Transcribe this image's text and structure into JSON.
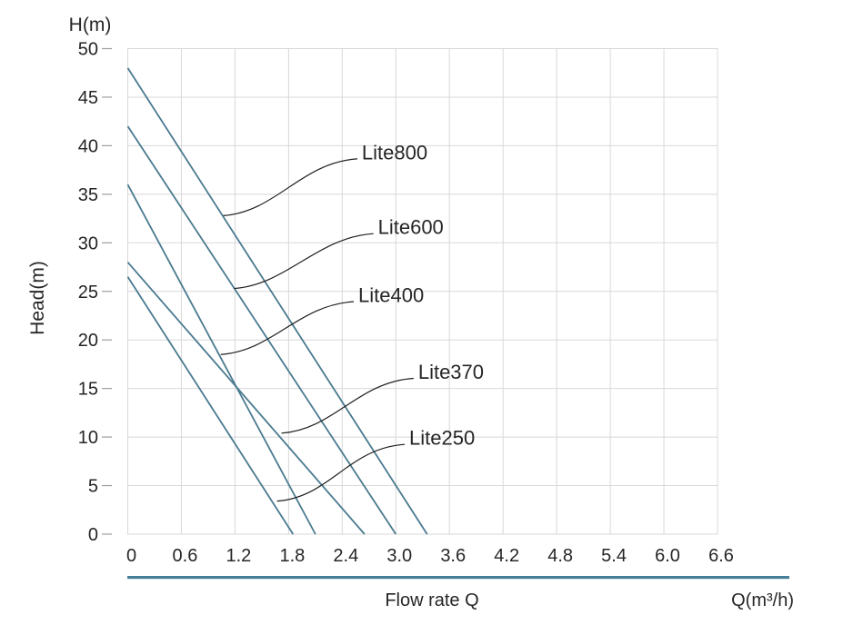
{
  "chart_data": {
    "type": "line",
    "title": "",
    "y_axis_unit": "H(m)",
    "ylabel": "Head(m)",
    "xlabel": "Flow rate Q",
    "x_axis_unit": "Q(m³/h)",
    "xlim": [
      0,
      6.6
    ],
    "ylim": [
      0,
      50
    ],
    "grid": true,
    "legend_position": "inline-annotations",
    "x_tick_values": [
      0,
      0.6,
      1.2,
      1.8,
      2.4,
      3.0,
      3.6,
      4.2,
      4.8,
      5.4,
      6.0,
      6.6
    ],
    "x_tick_labels": [
      "0",
      "0.6",
      "1.2",
      "1.8",
      "2.4",
      "3.0",
      "3.6",
      "4.2",
      "4.8",
      "5.4",
      "6.0",
      "6.6"
    ],
    "y_tick_values": [
      0,
      5,
      10,
      15,
      20,
      25,
      30,
      35,
      40,
      45,
      50
    ],
    "y_tick_labels": [
      "0",
      "5",
      "10",
      "15",
      "20",
      "25",
      "30",
      "35",
      "40",
      "45",
      "50"
    ],
    "series": [
      {
        "name": "Lite800",
        "points": [
          [
            0,
            48
          ],
          [
            3.35,
            0
          ]
        ],
        "label_at": [
          2.62,
          39.3
        ],
        "attach_at": [
          1.07,
          32.8
        ]
      },
      {
        "name": "Lite600",
        "points": [
          [
            0,
            42
          ],
          [
            3.0,
            0
          ]
        ],
        "label_at": [
          2.8,
          31.6
        ],
        "attach_at": [
          1.19,
          25.3
        ]
      },
      {
        "name": "Lite400",
        "points": [
          [
            0,
            36
          ],
          [
            2.1,
            0
          ]
        ],
        "label_at": [
          2.58,
          24.6
        ],
        "attach_at": [
          1.04,
          18.5
        ]
      },
      {
        "name": "Lite370",
        "points": [
          [
            0,
            28
          ],
          [
            2.65,
            0
          ]
        ],
        "label_at": [
          3.25,
          16.7
        ],
        "attach_at": [
          1.72,
          10.4
        ]
      },
      {
        "name": "Lite250",
        "points": [
          [
            0,
            26.5
          ],
          [
            1.85,
            0
          ]
        ],
        "label_at": [
          3.15,
          9.9
        ],
        "attach_at": [
          1.67,
          3.4
        ]
      }
    ],
    "colors": {
      "curve": "#4A7A8F",
      "grid": "#D8D8D8",
      "plot_border": "#D8D8D8",
      "tick_dash": "#9E9E9E",
      "text": "#262626",
      "leader": "#1F1F1F",
      "axis_underline": "#457F98",
      "background": "#FFFFFF"
    }
  }
}
